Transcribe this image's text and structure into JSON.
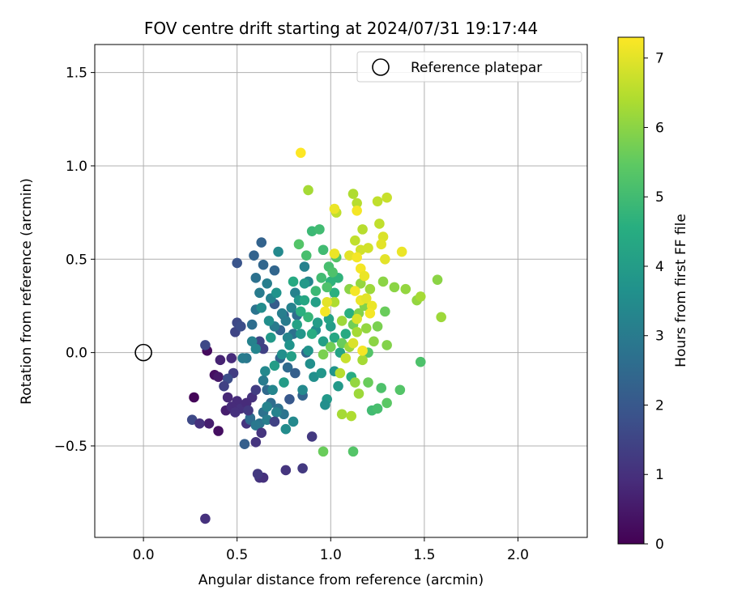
{
  "chart_data": {
    "type": "scatter",
    "title": "FOV centre drift starting at 2024/07/31 19:17:44",
    "xlabel": "Angular distance from reference (arcmin)",
    "ylabel": "Rotation from reference (arcmin)",
    "xlim": [
      -0.26,
      2.37
    ],
    "ylim": [
      -0.99,
      1.65
    ],
    "xticks": [
      0.0,
      0.5,
      1.0,
      1.5,
      2.0
    ],
    "xtick_labels": [
      "0.0",
      "0.5",
      "1.0",
      "1.5",
      "2.0"
    ],
    "yticks": [
      -0.5,
      0.0,
      0.5,
      1.0,
      1.5
    ],
    "ytick_labels": [
      "−0.5",
      "0.0",
      "0.5",
      "1.0",
      "1.5"
    ],
    "grid": true,
    "legend": {
      "placement": "top-right",
      "entries": [
        "Reference platepar"
      ]
    },
    "reference_point": {
      "x": 0.0,
      "y": 0.0,
      "label": "Reference platepar"
    },
    "colorbar": {
      "label": "Hours from first FF file",
      "range": [
        0,
        7.3
      ],
      "ticks": [
        0,
        1,
        2,
        3,
        4,
        5,
        6,
        7
      ],
      "tick_labels": [
        "0",
        "1",
        "2",
        "3",
        "4",
        "5",
        "6",
        "7"
      ],
      "colormap": "viridis"
    },
    "points": [
      [
        0.27,
        -0.24,
        0.1
      ],
      [
        0.34,
        0.01,
        0.2
      ],
      [
        0.38,
        -0.12,
        0.3
      ],
      [
        0.4,
        -0.42,
        0.3
      ],
      [
        0.4,
        -0.13,
        0.5
      ],
      [
        0.35,
        -0.38,
        0.6
      ],
      [
        0.33,
        -0.89,
        1.0
      ],
      [
        0.41,
        -0.04,
        0.7
      ],
      [
        0.45,
        -0.24,
        0.8
      ],
      [
        0.47,
        -0.03,
        0.9
      ],
      [
        0.5,
        -0.26,
        0.9
      ],
      [
        0.52,
        -0.3,
        1.0
      ],
      [
        0.55,
        -0.38,
        1.1
      ],
      [
        0.6,
        -0.48,
        1.1
      ],
      [
        0.62,
        -0.67,
        1.1
      ],
      [
        0.76,
        -0.63,
        1.1
      ],
      [
        0.85,
        -0.62,
        1.2
      ],
      [
        0.9,
        -0.45,
        1.2
      ],
      [
        0.58,
        -0.24,
        1.0
      ],
      [
        0.55,
        -0.27,
        0.9
      ],
      [
        0.26,
        -0.36,
        1.6
      ],
      [
        0.33,
        0.04,
        1.6
      ],
      [
        0.48,
        -0.11,
        1.3
      ],
      [
        0.49,
        0.11,
        1.5
      ],
      [
        0.5,
        0.16,
        1.6
      ],
      [
        0.52,
        0.14,
        1.7
      ],
      [
        0.5,
        0.48,
        1.9
      ],
      [
        0.6,
        -0.2,
        1.3
      ],
      [
        0.62,
        0.06,
        1.5
      ],
      [
        0.64,
        0.02,
        1.4
      ],
      [
        0.64,
        -0.67,
        1.0
      ],
      [
        0.61,
        -0.65,
        1.2
      ],
      [
        0.54,
        -0.49,
        2.2
      ],
      [
        0.57,
        -0.36,
        2.4
      ],
      [
        0.63,
        0.59,
        2.3
      ],
      [
        0.59,
        0.52,
        2.3
      ],
      [
        0.64,
        0.47,
        2.4
      ],
      [
        0.7,
        0.44,
        2.4
      ],
      [
        0.7,
        0.26,
        2.1
      ],
      [
        0.73,
        0.12,
        2.3
      ],
      [
        0.75,
        0.2,
        2.2
      ],
      [
        0.66,
        -0.2,
        2.5
      ],
      [
        0.64,
        -0.32,
        2.7
      ],
      [
        0.62,
        -0.38,
        2.8
      ],
      [
        0.68,
        -0.27,
        2.6
      ],
      [
        0.72,
        -0.3,
        2.7
      ],
      [
        0.75,
        -0.33,
        2.8
      ],
      [
        0.73,
        -0.03,
        2.4
      ],
      [
        0.77,
        -0.08,
        2.5
      ],
      [
        0.8,
        0.1,
        2.7
      ],
      [
        0.82,
        0.2,
        2.6
      ],
      [
        0.78,
        -0.25,
        2.0
      ],
      [
        0.81,
        -0.11,
        2.2
      ],
      [
        0.85,
        -0.23,
        2.3
      ],
      [
        0.87,
        0.0,
        2.4
      ],
      [
        0.6,
        0.23,
        2.8
      ],
      [
        0.62,
        0.32,
        3.0
      ],
      [
        0.66,
        0.37,
        3.1
      ],
      [
        0.68,
        0.29,
        3.2
      ],
      [
        0.7,
        0.14,
        3.0
      ],
      [
        0.74,
        0.21,
        3.1
      ],
      [
        0.76,
        0.17,
        3.0
      ],
      [
        0.79,
        0.24,
        3.2
      ],
      [
        0.81,
        0.32,
        3.2
      ],
      [
        0.77,
        0.08,
        3.3
      ],
      [
        0.72,
        0.54,
        3.4
      ],
      [
        0.86,
        0.46,
        3.2
      ],
      [
        0.88,
        0.38,
        3.3
      ],
      [
        0.92,
        0.12,
        3.5
      ],
      [
        0.89,
        -0.06,
        3.6
      ],
      [
        0.85,
        -0.2,
        3.4
      ],
      [
        0.8,
        -0.37,
        3.4
      ],
      [
        0.76,
        -0.41,
        3.5
      ],
      [
        0.69,
        -0.2,
        3.3
      ],
      [
        0.66,
        -0.29,
        3.2
      ],
      [
        0.58,
        0.06,
        3.2
      ],
      [
        0.6,
        0.02,
        3.3
      ],
      [
        0.65,
        -0.1,
        3.4
      ],
      [
        0.63,
        0.24,
        3.5
      ],
      [
        0.67,
        0.17,
        3.6
      ],
      [
        0.71,
        0.32,
        3.7
      ],
      [
        0.74,
        -0.01,
        3.6
      ],
      [
        0.78,
        0.04,
        3.7
      ],
      [
        0.83,
        0.28,
        3.8
      ],
      [
        0.86,
        0.37,
        3.9
      ],
      [
        0.84,
        0.1,
        3.8
      ],
      [
        0.88,
        0.01,
        3.7
      ],
      [
        0.91,
        -0.13,
        3.6
      ],
      [
        0.95,
        -0.11,
        3.8
      ],
      [
        0.98,
        -0.25,
        3.9
      ],
      [
        0.97,
        -0.28,
        3.6
      ],
      [
        1.02,
        -0.1,
        3.7
      ],
      [
        1.04,
        -0.18,
        3.9
      ],
      [
        0.93,
        0.16,
        4.0
      ],
      [
        0.96,
        0.06,
        4.1
      ],
      [
        1.0,
        0.14,
        4.0
      ],
      [
        0.92,
        0.27,
        4.1
      ],
      [
        0.99,
        0.18,
        4.2
      ],
      [
        1.02,
        0.08,
        4.3
      ],
      [
        1.05,
        0.0,
        4.2
      ],
      [
        1.08,
        0.1,
        4.4
      ],
      [
        1.11,
        -0.13,
        4.5
      ],
      [
        1.1,
        0.21,
        4.6
      ],
      [
        1.02,
        0.32,
        4.6
      ],
      [
        1.04,
        0.4,
        4.7
      ],
      [
        1.0,
        0.38,
        4.7
      ],
      [
        0.9,
        0.65,
        4.9
      ],
      [
        0.94,
        0.66,
        5.0
      ],
      [
        0.96,
        0.55,
        5.0
      ],
      [
        0.99,
        0.46,
        5.1
      ],
      [
        1.01,
        0.43,
        5.2
      ],
      [
        1.03,
        0.51,
        5.3
      ],
      [
        0.83,
        0.58,
        5.3
      ],
      [
        0.87,
        0.52,
        5.1
      ],
      [
        0.98,
        0.35,
        5.2
      ],
      [
        1.2,
        0.0,
        5.3
      ],
      [
        1.22,
        -0.31,
        5.0
      ],
      [
        1.25,
        -0.3,
        5.1
      ],
      [
        1.2,
        -0.16,
        5.6
      ],
      [
        1.27,
        -0.19,
        5.2
      ],
      [
        1.3,
        -0.27,
        5.4
      ],
      [
        1.37,
        -0.2,
        5.3
      ],
      [
        1.48,
        -0.05,
        5.2
      ],
      [
        1.12,
        -0.53,
        5.3
      ],
      [
        0.96,
        -0.53,
        5.6
      ],
      [
        0.96,
        -0.01,
        5.8
      ],
      [
        1.0,
        0.03,
        5.7
      ],
      [
        1.06,
        0.05,
        5.6
      ],
      [
        1.12,
        0.15,
        5.7
      ],
      [
        1.15,
        0.21,
        5.9
      ],
      [
        1.18,
        0.25,
        5.9
      ],
      [
        1.25,
        0.14,
        5.8
      ],
      [
        1.29,
        0.22,
        5.6
      ],
      [
        1.3,
        0.04,
        5.9
      ],
      [
        1.23,
        0.06,
        6.0
      ],
      [
        1.19,
        0.13,
        6.1
      ],
      [
        1.13,
        -0.16,
        6.1
      ],
      [
        1.15,
        -0.22,
        6.2
      ],
      [
        1.06,
        -0.33,
        6.3
      ],
      [
        1.11,
        -0.34,
        6.4
      ],
      [
        1.17,
        -0.04,
        6.3
      ],
      [
        1.1,
        0.03,
        6.2
      ],
      [
        1.14,
        0.11,
        6.3
      ],
      [
        1.06,
        0.17,
        6.2
      ],
      [
        1.02,
        0.27,
        6.4
      ],
      [
        1.1,
        0.34,
        6.0
      ],
      [
        1.16,
        0.37,
        6.1
      ],
      [
        1.21,
        0.34,
        6.2
      ],
      [
        1.28,
        0.38,
        6.0
      ],
      [
        1.34,
        0.35,
        6.0
      ],
      [
        1.4,
        0.34,
        6.1
      ],
      [
        1.46,
        0.28,
        6.1
      ],
      [
        1.48,
        0.3,
        6.3
      ],
      [
        1.57,
        0.39,
        6.0
      ],
      [
        1.59,
        0.19,
        6.2
      ],
      [
        1.12,
        0.85,
        6.4
      ],
      [
        1.14,
        0.8,
        6.5
      ],
      [
        1.17,
        0.66,
        6.5
      ],
      [
        1.25,
        0.81,
        6.6
      ],
      [
        1.3,
        0.83,
        6.7
      ],
      [
        0.88,
        0.87,
        6.3
      ],
      [
        1.03,
        0.75,
        6.6
      ],
      [
        1.13,
        0.6,
        6.6
      ],
      [
        1.16,
        0.55,
        6.8
      ],
      [
        1.2,
        0.56,
        6.8
      ],
      [
        1.26,
        0.69,
        6.6
      ],
      [
        1.28,
        0.62,
        6.9
      ],
      [
        1.27,
        0.58,
        7.0
      ],
      [
        1.29,
        0.5,
        7.0
      ],
      [
        1.38,
        0.54,
        7.1
      ],
      [
        1.1,
        0.52,
        7.0
      ],
      [
        1.02,
        0.53,
        7.1
      ],
      [
        1.14,
        0.51,
        7.2
      ],
      [
        1.16,
        0.45,
        7.2
      ],
      [
        1.18,
        0.41,
        7.1
      ],
      [
        1.13,
        0.33,
        7.2
      ],
      [
        1.16,
        0.28,
        7.1
      ],
      [
        1.19,
        0.29,
        7.0
      ],
      [
        1.22,
        0.25,
        7.1
      ],
      [
        1.21,
        0.21,
        7.2
      ],
      [
        1.17,
        0.01,
        7.2
      ],
      [
        0.97,
        0.22,
        7.2
      ],
      [
        0.98,
        0.27,
        7.0
      ],
      [
        1.14,
        0.76,
        7.2
      ],
      [
        1.02,
        0.77,
        7.1
      ],
      [
        0.84,
        1.07,
        7.3
      ],
      [
        1.12,
        0.05,
        6.9
      ],
      [
        1.08,
        -0.03,
        6.7
      ],
      [
        1.05,
        -0.11,
        6.5
      ],
      [
        1.14,
        0.18,
        6.9
      ],
      [
        0.88,
        0.19,
        4.8
      ],
      [
        0.9,
        0.1,
        4.5
      ],
      [
        0.84,
        0.22,
        4.6
      ],
      [
        0.8,
        0.38,
        4.4
      ],
      [
        0.92,
        0.33,
        4.9
      ],
      [
        0.95,
        0.4,
        5.0
      ],
      [
        0.86,
        0.28,
        4.3
      ],
      [
        0.82,
        0.15,
        4.2
      ],
      [
        0.79,
        -0.02,
        4.1
      ],
      [
        0.75,
        -0.16,
        4.0
      ],
      [
        0.7,
        -0.07,
        4.0
      ],
      [
        0.68,
        0.08,
        3.9
      ],
      [
        0.64,
        -0.15,
        3.0
      ],
      [
        0.57,
        -0.35,
        2.6
      ],
      [
        0.6,
        -0.39,
        2.9
      ],
      [
        0.66,
        -0.36,
        3.1
      ],
      [
        0.71,
        -0.32,
        3.2
      ],
      [
        0.6,
        0.4,
        2.7
      ],
      [
        0.58,
        0.15,
        2.6
      ],
      [
        0.55,
        -0.03,
        2.9
      ],
      [
        0.53,
        -0.03,
        3.0
      ],
      [
        0.45,
        -0.14,
        1.7
      ],
      [
        0.43,
        -0.18,
        1.4
      ],
      [
        0.3,
        -0.38,
        1.0
      ],
      [
        0.44,
        -0.31,
        0.6
      ],
      [
        0.47,
        -0.29,
        0.9
      ],
      [
        0.49,
        -0.32,
        1.0
      ],
      [
        0.56,
        -0.31,
        1.2
      ],
      [
        0.63,
        -0.43,
        1.1
      ],
      [
        0.7,
        -0.37,
        1.4
      ]
    ]
  }
}
